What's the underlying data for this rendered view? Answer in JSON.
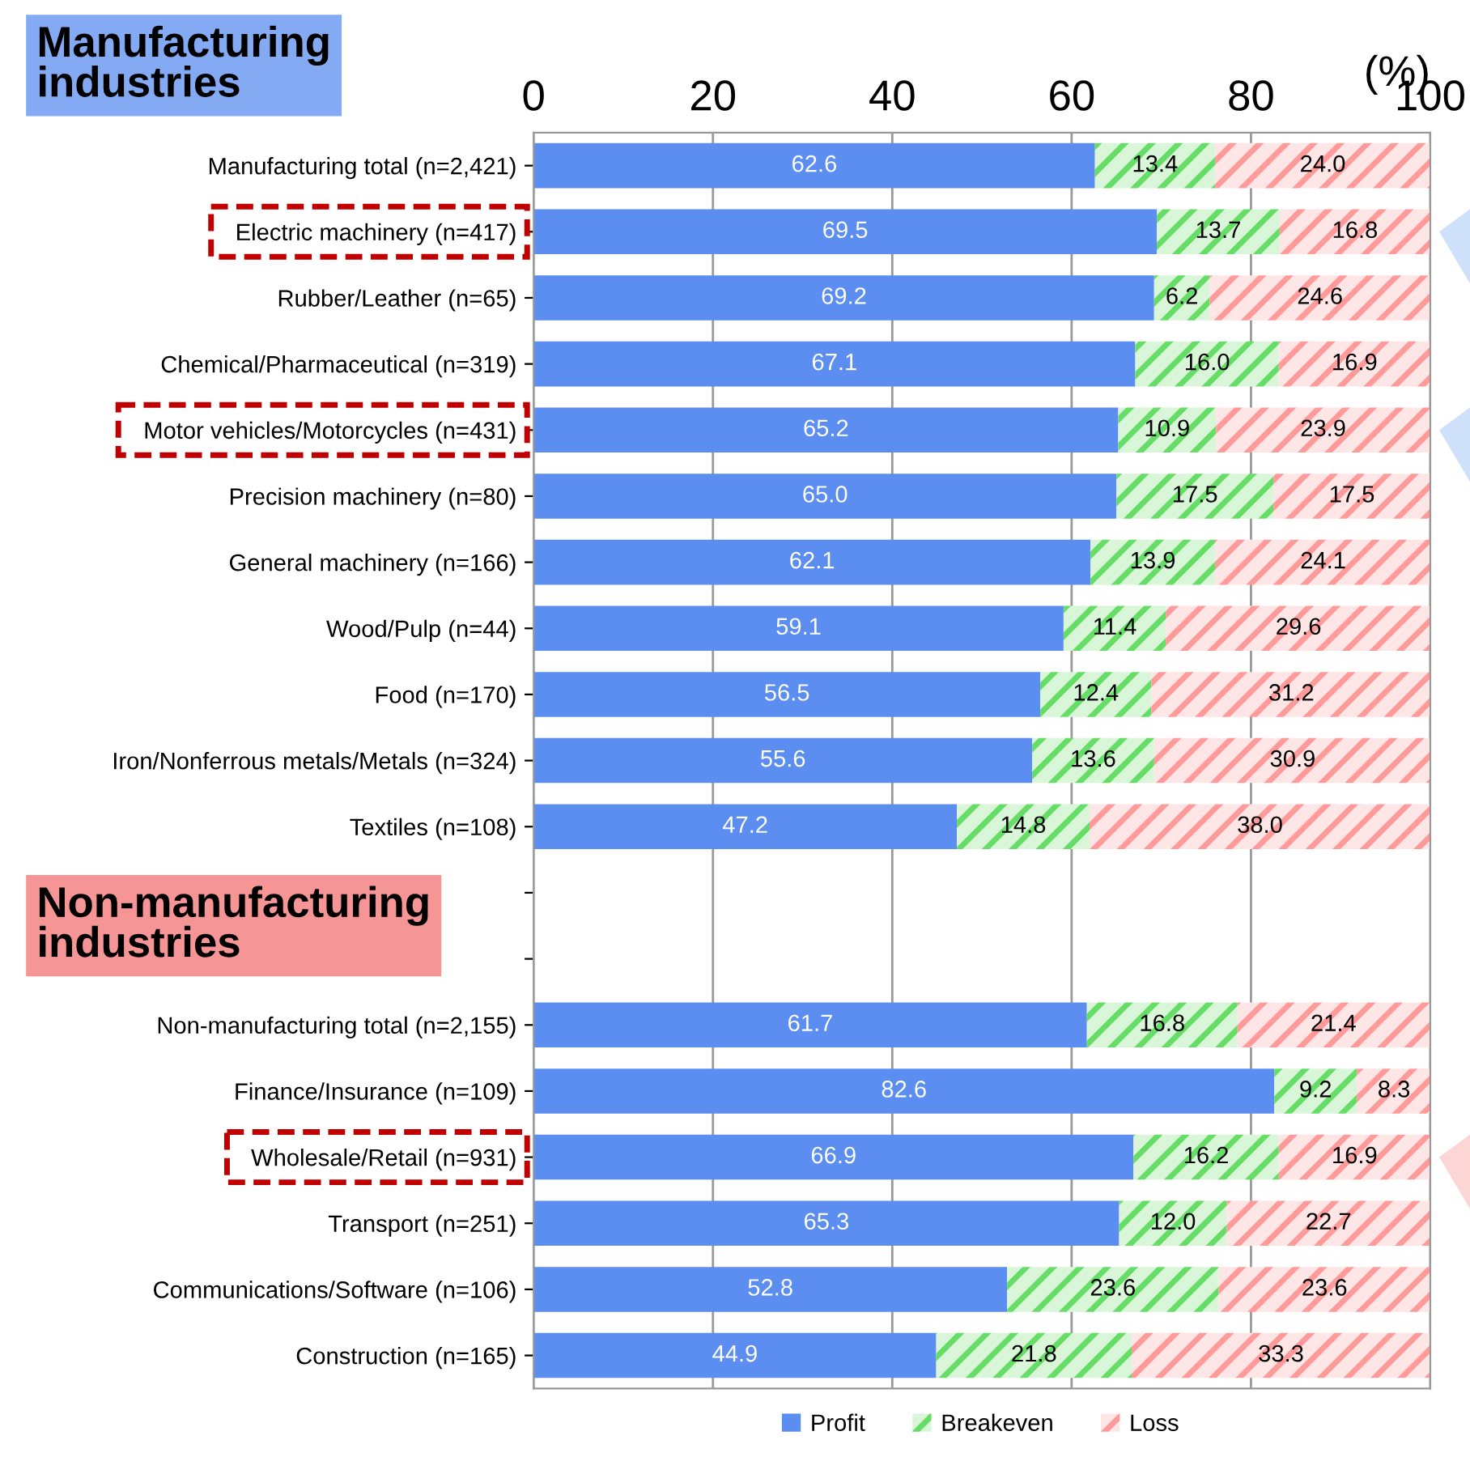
{
  "chart_data": {
    "type": "bar",
    "orientation": "horizontal",
    "stacked": true,
    "xlabel": "(%)",
    "annotations": [
      "Manufacturing\nindustries",
      "Non-manufacturing\nindustries"
    ],
    "categories": [
      "Manufacturing total (n=2,421)",
      "Electric machinery (n=417)",
      "Rubber/Leather (n=65)",
      "Chemical/Pharmaceutical (n=319)",
      "Motor vehicles/Motorcycles (n=431)",
      "Precision machinery (n=80)",
      "General machinery (n=166)",
      "Wood/Pulp (n=44)",
      "Food (n=170)",
      "Iron/Nonferrous metals/Metals (n=324)",
      "Textiles (n=108)",
      null,
      null,
      "Non-manufacturing total (n=2,155)",
      "Finance/Insurance (n=109)",
      "Wholesale/Retail (n=931)",
      "Transport (n=251)",
      "Communications/Software (n=106)",
      "Construction (n=165)"
    ],
    "series": [
      {
        "name": "Profit",
        "color": "#5b8ef0",
        "values": [
          62.6,
          69.5,
          69.2,
          67.1,
          65.2,
          65.0,
          62.1,
          59.1,
          56.5,
          55.6,
          47.2,
          null,
          null,
          61.7,
          82.6,
          66.9,
          65.3,
          52.8,
          44.9
        ],
        "value_labels": [
          "62.6",
          "69.5",
          "69.2",
          "67.1",
          "65.2",
          "65.0",
          "62.1",
          "59.1",
          "56.5",
          "55.6",
          "47.2",
          null,
          null,
          "61.7",
          "82.6",
          "66.9",
          "65.3",
          "52.8",
          "44.9"
        ]
      },
      {
        "name": "Breakeven",
        "color": "#66dd66",
        "values": [
          13.4,
          13.7,
          6.2,
          16.0,
          10.9,
          17.5,
          13.9,
          11.4,
          12.4,
          13.6,
          14.8,
          null,
          null,
          16.8,
          9.2,
          16.2,
          12.0,
          23.6,
          21.8
        ],
        "value_labels": [
          "13.4",
          "13.7",
          "6.2",
          "16.0",
          "10.9",
          "17.5",
          "13.9",
          "11.4",
          "12.4",
          "13.6",
          "14.8",
          null,
          null,
          "16.8",
          "9.2",
          "16.2",
          "12.0",
          "23.6",
          "21.8"
        ]
      },
      {
        "name": "Loss",
        "color": "#ff9a9a",
        "values": [
          24.0,
          16.8,
          24.6,
          16.9,
          23.9,
          17.5,
          24.1,
          29.6,
          31.2,
          30.9,
          38.0,
          null,
          null,
          21.4,
          8.3,
          16.9,
          22.7,
          23.6,
          33.3
        ],
        "value_labels": [
          "24.0",
          "16.8",
          "24.6",
          "16.9",
          "23.9",
          "17.5",
          "24.1",
          "29.6",
          "31.2",
          "30.9",
          "38.0",
          null,
          null,
          "21.4",
          "8.3",
          "16.9",
          "22.7",
          "23.6",
          "33.3"
        ]
      }
    ],
    "xlim": [
      0,
      100
    ],
    "xticks": [
      0,
      20,
      40,
      60,
      80,
      100
    ],
    "grid": "x",
    "legend": "bottom"
  }
}
